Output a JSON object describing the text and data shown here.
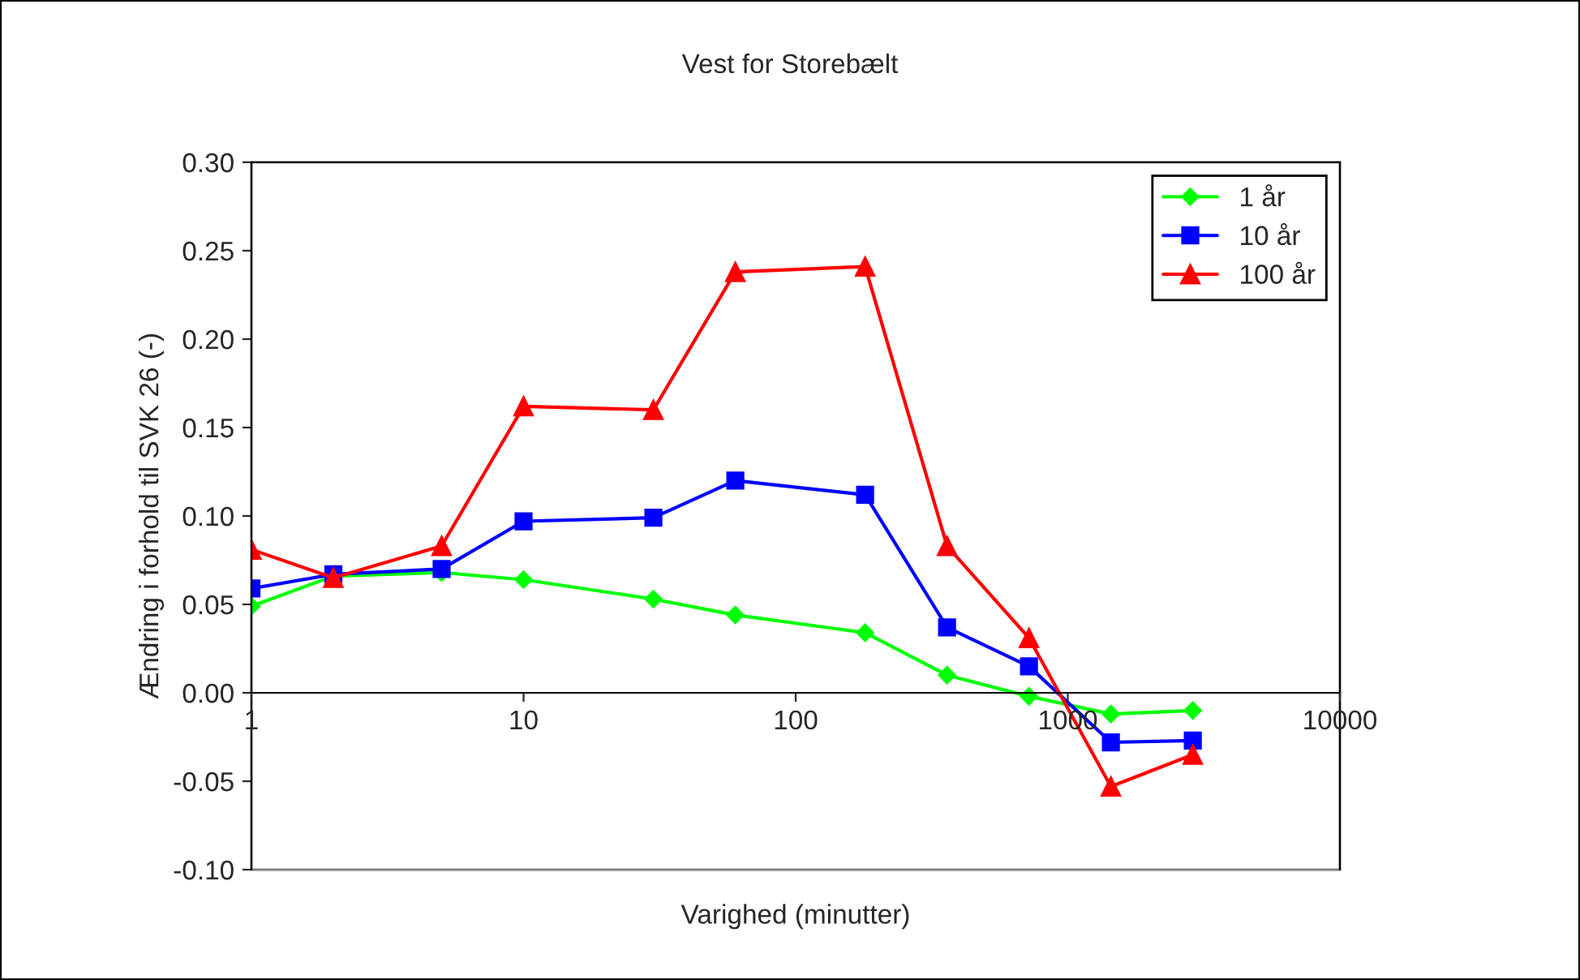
{
  "chart_data": {
    "type": "line",
    "title": "Vest for Storebælt",
    "xlabel": "Varighed (minutter)",
    "ylabel": "Ændring i forhold til SVK 26 (-)",
    "log": "x",
    "x": [
      1,
      2,
      5,
      10,
      30,
      60,
      180,
      360,
      720,
      1440,
      2880
    ],
    "xlim": [
      1,
      10000
    ],
    "xticks": [
      1,
      10,
      100,
      1000,
      10000
    ],
    "ylim": [
      -0.1,
      0.3
    ],
    "yticks": [
      {
        "value": -0.1,
        "label": "-0.10"
      },
      {
        "value": -0.05,
        "label": "-0.05"
      },
      {
        "value": 0,
        "label": "0.00"
      },
      {
        "value": 0.05,
        "label": "0.05"
      },
      {
        "value": 0.1,
        "label": "0.10"
      },
      {
        "value": 0.15,
        "label": "0.15"
      },
      {
        "value": 0.2,
        "label": "0.20"
      },
      {
        "value": 0.25,
        "label": "0.25"
      },
      {
        "value": 0.3,
        "label": "0.30"
      }
    ],
    "grid": false,
    "legend": "top right",
    "line_style": "solid",
    "series": [
      {
        "name": "1 år",
        "color": "#00ff00",
        "marker": "diamond",
        "values": [
          0.049,
          0.066,
          0.068,
          0.064,
          0.053,
          0.044,
          0.034,
          0.01,
          -0.002,
          -0.012,
          -0.01
        ]
      },
      {
        "name": "10 år",
        "color": "#0000ff",
        "marker": "square",
        "values": [
          0.059,
          0.067,
          0.07,
          0.097,
          0.099,
          0.12,
          0.112,
          0.037,
          0.015,
          -0.028,
          -0.027
        ]
      },
      {
        "name": "100 år",
        "color": "#ff0000",
        "marker": "triangle",
        "values": [
          0.081,
          0.065,
          0.083,
          0.162,
          0.16,
          0.238,
          0.241,
          0.083,
          0.031,
          -0.053,
          -0.035
        ]
      }
    ]
  }
}
